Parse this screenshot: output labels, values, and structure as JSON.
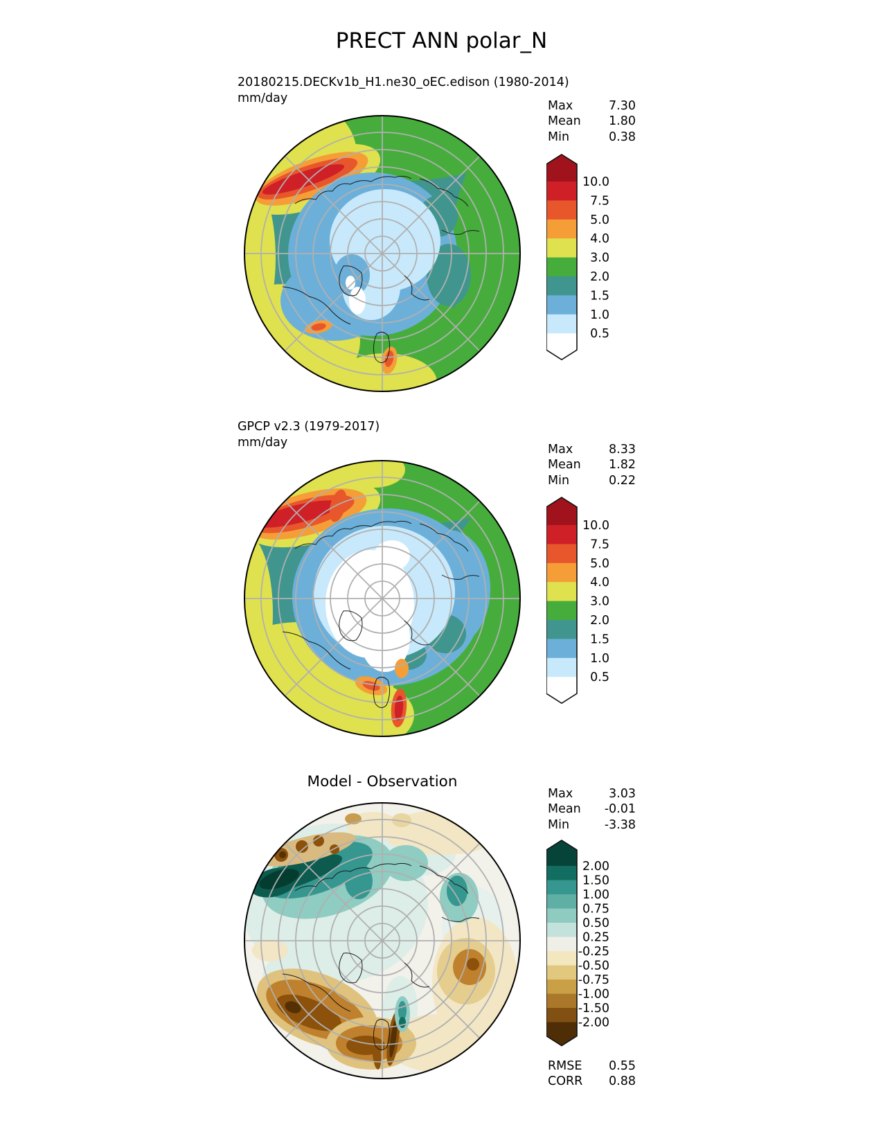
{
  "figure_title": "PRECT ANN polar_N",
  "panels": {
    "model": {
      "title": "20180215.DECKv1b_H1.ne30_oEC.edison (1980-2014)",
      "units": "mm/day",
      "stats": {
        "max_label": "Max",
        "max_value": "7.30",
        "mean_label": "Mean",
        "mean_value": "1.80",
        "min_label": "Min",
        "min_value": "0.38"
      }
    },
    "obs": {
      "title": "GPCP v2.3 (1979-2017)",
      "units": "mm/day",
      "stats": {
        "max_label": "Max",
        "max_value": "8.33",
        "mean_label": "Mean",
        "mean_value": "1.82",
        "min_label": "Min",
        "min_value": "0.22"
      }
    },
    "diff": {
      "title": "Model - Observation",
      "stats": {
        "max_label": "Max",
        "max_value": "3.03",
        "mean_label": "Mean",
        "mean_value": "-0.01",
        "min_label": "Min",
        "min_value": "-3.38"
      },
      "metrics": {
        "rmse_label": "RMSE",
        "rmse_value": "0.55",
        "corr_label": "CORR",
        "corr_value": "0.88"
      }
    }
  },
  "colorbars": {
    "precip": {
      "tick_labels": [
        "10.0",
        "7.5",
        "5.0",
        "4.0",
        "3.0",
        "2.0",
        "1.5",
        "1.0",
        "0.5"
      ],
      "extend_high_color": "#a1131c",
      "segment_colors": [
        "#cf2027",
        "#e8562c",
        "#f59e38",
        "#dfe14e",
        "#46ad3d",
        "#40968e",
        "#6cb0da",
        "#c8e9fb"
      ],
      "extend_low_color": "#ffffff",
      "outline_color": "#111111"
    },
    "diff": {
      "tick_labels": [
        "2.00",
        "1.50",
        "1.00",
        "0.75",
        "0.50",
        "0.25",
        "-0.25",
        "-0.50",
        "-0.75",
        "-1.00",
        "-1.50",
        "-2.00"
      ],
      "extend_high_color": "#06443a",
      "segment_colors": [
        "#116e60",
        "#35978f",
        "#5fafa4",
        "#8fcbc0",
        "#c3e2dc",
        "#f0efe7",
        "#f3e7c0",
        "#e2c87f",
        "#c9a045",
        "#aa772b",
        "#815012"
      ],
      "extend_low_color": "#4f2e07",
      "outline_color": "#111111"
    }
  },
  "map_palette": {
    "teal": "#40968e",
    "green": "#46ad3d",
    "yellow": "#dfe14e",
    "blue": "#6cb0da",
    "light_blue": "#c8e9fb",
    "white": "#ffffff",
    "orange": "#f59e38",
    "orange_red": "#e8562c",
    "red": "#cf2027",
    "graticule": "#b0b0b0",
    "coastline": "#1a1a1a",
    "diff_background": "#f2f1ea"
  },
  "chart_data": [
    {
      "type": "heatmap",
      "subtype": "polar-stereographic-filled-contour-map",
      "region": "polar_N",
      "title": "20180215.DECKv1b_H1.ne30_oEC.edison (1980-2014)",
      "variable": "PRECT",
      "season": "ANN",
      "units": "mm/day",
      "contour_levels": [
        0.5,
        1.0,
        1.5,
        2.0,
        3.0,
        4.0,
        5.0,
        7.5,
        10.0
      ],
      "colorbar_extend": "both",
      "legend_position": "right",
      "stats": {
        "max": 7.3,
        "mean": 1.8,
        "min": 0.38
      }
    },
    {
      "type": "heatmap",
      "subtype": "polar-stereographic-filled-contour-map",
      "region": "polar_N",
      "title": "GPCP v2.3 (1979-2017)",
      "variable": "PRECT",
      "season": "ANN",
      "units": "mm/day",
      "contour_levels": [
        0.5,
        1.0,
        1.5,
        2.0,
        3.0,
        4.0,
        5.0,
        7.5,
        10.0
      ],
      "colorbar_extend": "both",
      "legend_position": "right",
      "stats": {
        "max": 8.33,
        "mean": 1.82,
        "min": 0.22
      }
    },
    {
      "type": "heatmap",
      "subtype": "polar-stereographic-filled-contour-map",
      "region": "polar_N",
      "title": "Model - Observation",
      "variable": "PRECT difference",
      "season": "ANN",
      "units": "mm/day",
      "contour_levels": [
        -2.0,
        -1.5,
        -1.0,
        -0.75,
        -0.5,
        -0.25,
        0.25,
        0.5,
        0.75,
        1.0,
        1.5,
        2.0
      ],
      "colorbar_extend": "both",
      "legend_position": "right",
      "stats": {
        "max": 3.03,
        "mean": -0.01,
        "min": -3.38
      },
      "metrics": {
        "rmse": 0.55,
        "corr": 0.88
      }
    }
  ]
}
